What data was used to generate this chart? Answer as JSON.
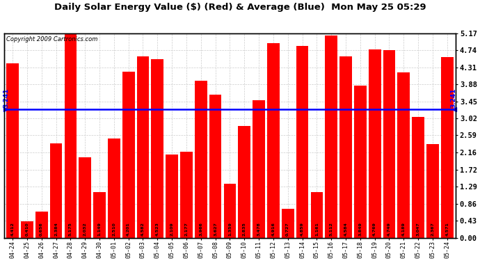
{
  "title": "Daily Solar Energy Value ($) (Red) & Average (Blue)  Mon May 25 05:29",
  "copyright": "Copyright 2009 Cartronics.com",
  "average": 3.241,
  "bar_color": "#ff0000",
  "average_color": "#0000ff",
  "background_color": "#ffffff",
  "plot_bg_color": "#ffffff",
  "ylim": [
    0,
    5.17
  ],
  "yticks": [
    0.0,
    0.43,
    0.86,
    1.29,
    1.72,
    2.16,
    2.59,
    3.02,
    3.45,
    3.88,
    4.31,
    4.74,
    5.17
  ],
  "categories": [
    "04-24",
    "04-25",
    "04-26",
    "04-27",
    "04-28",
    "04-29",
    "04-30",
    "05-01",
    "05-02",
    "05-03",
    "05-04",
    "05-05",
    "05-06",
    "05-07",
    "05-08",
    "05-09",
    "05-10",
    "05-11",
    "05-12",
    "05-13",
    "05-14",
    "05-15",
    "05-16",
    "05-17",
    "05-18",
    "05-19",
    "05-20",
    "05-21",
    "05-22",
    "05-23",
    "05-24"
  ],
  "values": [
    4.412,
    0.41,
    0.656,
    2.384,
    5.175,
    2.032,
    1.149,
    2.51,
    4.201,
    4.582,
    4.523,
    2.109,
    2.177,
    3.966,
    3.627,
    1.359,
    2.835,
    3.478,
    4.916,
    0.727,
    4.859,
    1.161,
    5.112,
    4.584,
    3.849,
    4.769,
    4.749,
    4.189,
    3.047,
    2.367,
    4.571
  ]
}
